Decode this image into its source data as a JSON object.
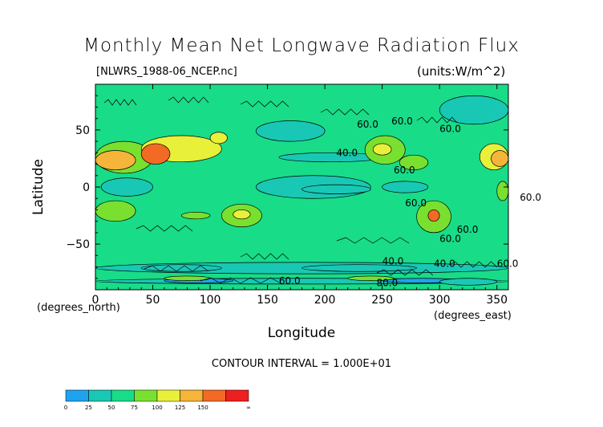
{
  "title": "Monthly Mean Net Longwave Radiation Flux",
  "subtitle_left": "[NLWRS_1988-06_NCEP.nc]",
  "subtitle_right": "(units:W/m^2)",
  "contour_interval": "CONTOUR INTERVAL = 1.000E+01",
  "chart_data": {
    "type": "heatmap",
    "xlabel": "Longitude",
    "ylabel": "Latitude",
    "x_unit_label": "(degrees_east)",
    "y_unit_label": "(degrees_north)",
    "xlim": [
      0,
      360
    ],
    "ylim": [
      -90,
      90
    ],
    "x_ticks": [
      0,
      50,
      100,
      150,
      200,
      250,
      300,
      350
    ],
    "y_ticks": [
      -50,
      0,
      50
    ],
    "y_tick_labels": [
      "−50",
      "0",
      "50"
    ],
    "contour_labels": [
      "60.0",
      "60.0",
      "60.0",
      "40.0",
      "60.0",
      "60.0",
      "60.0",
      "60.0",
      "40.0",
      "40.0",
      "80.0",
      "60.0",
      "60.0",
      "60.0"
    ],
    "colorbar": {
      "labels": [
        "0",
        "25",
        "50",
        "75",
        "100",
        "125",
        "150",
        "∞"
      ],
      "colors": [
        "#1fa3f0",
        "#19c8b4",
        "#18dc88",
        "#7ae030",
        "#e8f03a",
        "#f5b43a",
        "#f26a23",
        "#ee1f1f"
      ]
    },
    "regions": [
      {
        "value": 55,
        "lon": [
          0,
          360
        ],
        "lat": [
          -90,
          90
        ]
      },
      {
        "value": 45,
        "lon": [
          5,
          50
        ],
        "lat": [
          -8,
          8
        ]
      },
      {
        "value": 45,
        "lon": [
          140,
          240
        ],
        "lat": [
          -10,
          10
        ]
      },
      {
        "value": 45,
        "lon": [
          160,
          250
        ],
        "lat": [
          22,
          30
        ]
      },
      {
        "value": 45,
        "lon": [
          250,
          290
        ],
        "lat": [
          -5,
          5
        ]
      },
      {
        "value": 45,
        "lon": [
          140,
          200
        ],
        "lat": [
          40,
          58
        ]
      },
      {
        "value": 40,
        "lon": [
          180,
          240
        ],
        "lat": [
          -6,
          2
        ]
      },
      {
        "value": 45,
        "lon": [
          0,
          360
        ],
        "lat": [
          -76,
          -66
        ]
      },
      {
        "value": 35,
        "lon": [
          40,
          110
        ],
        "lat": [
          -74,
          -68
        ]
      },
      {
        "value": 35,
        "lon": [
          180,
          280
        ],
        "lat": [
          -74,
          -68
        ]
      },
      {
        "value": 45,
        "lon": [
          300,
          360
        ],
        "lat": [
          55,
          80
        ]
      },
      {
        "value": 85,
        "lon": [
          0,
          50
        ],
        "lat": [
          12,
          40
        ]
      },
      {
        "value": 110,
        "lon": [
          40,
          110
        ],
        "lat": [
          22,
          45
        ]
      },
      {
        "value": 140,
        "lon": [
          0,
          35
        ],
        "lat": [
          15,
          32
        ]
      },
      {
        "value": 150,
        "lon": [
          40,
          65
        ],
        "lat": [
          20,
          38
        ]
      },
      {
        "value": 115,
        "lon": [
          100,
          115
        ],
        "lat": [
          38,
          48
        ]
      },
      {
        "value": 90,
        "lon": [
          0,
          35
        ],
        "lat": [
          -30,
          -12
        ]
      },
      {
        "value": 95,
        "lon": [
          110,
          145
        ],
        "lat": [
          -35,
          -15
        ]
      },
      {
        "value": 115,
        "lon": [
          120,
          135
        ],
        "lat": [
          -28,
          -20
        ]
      },
      {
        "value": 80,
        "lon": [
          75,
          100
        ],
        "lat": [
          -28,
          -22
        ]
      },
      {
        "value": 95,
        "lon": [
          235,
          270
        ],
        "lat": [
          20,
          45
        ]
      },
      {
        "value": 120,
        "lon": [
          242,
          258
        ],
        "lat": [
          28,
          38
        ]
      },
      {
        "value": 95,
        "lon": [
          280,
          310
        ],
        "lat": [
          -40,
          -12
        ]
      },
      {
        "value": 160,
        "lon": [
          290,
          300
        ],
        "lat": [
          -30,
          -20
        ]
      },
      {
        "value": 100,
        "lon": [
          335,
          360
        ],
        "lat": [
          15,
          38
        ]
      },
      {
        "value": 140,
        "lon": [
          345,
          360
        ],
        "lat": [
          18,
          32
        ]
      },
      {
        "value": 80,
        "lon": [
          350,
          360
        ],
        "lat": [
          -12,
          5
        ]
      },
      {
        "value": 90,
        "lon": [
          265,
          290
        ],
        "lat": [
          15,
          28
        ]
      },
      {
        "value": 25,
        "lon": [
          0,
          360
        ],
        "lat": [
          -85,
          -80
        ]
      },
      {
        "value": 15,
        "lon": [
          60,
          120
        ],
        "lat": [
          -84,
          -80
        ]
      },
      {
        "value": 15,
        "lon": [
          250,
          320
        ],
        "lat": [
          -84,
          -80
        ]
      },
      {
        "value": 80,
        "lon": [
          60,
          100
        ],
        "lat": [
          -82,
          -78
        ]
      },
      {
        "value": 80,
        "lon": [
          220,
          260
        ],
        "lat": [
          -82,
          -78
        ]
      },
      {
        "value": 45,
        "lon": [
          300,
          350
        ],
        "lat": [
          -86,
          -80
        ]
      }
    ]
  }
}
